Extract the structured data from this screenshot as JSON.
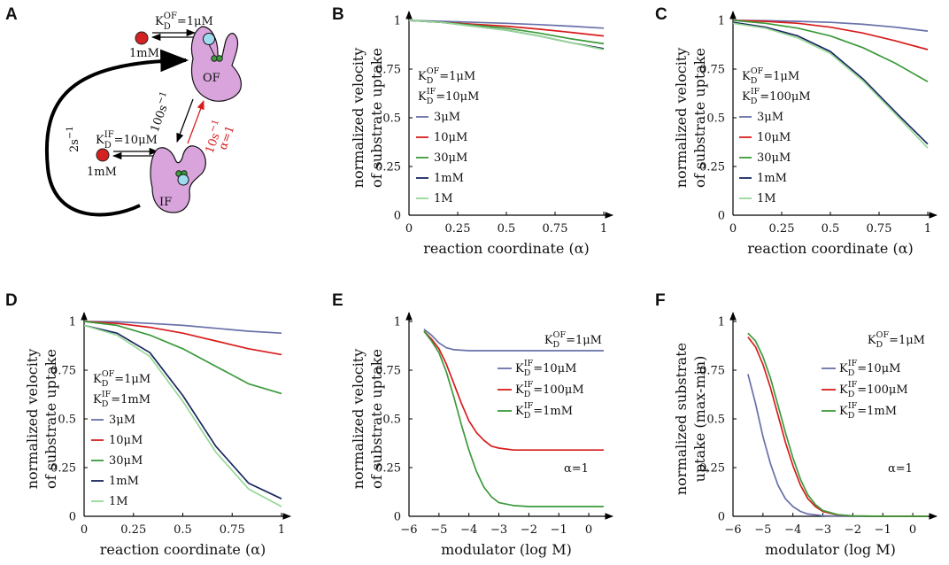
{
  "figure": {
    "panel_letters": [
      "A",
      "B",
      "C",
      "D",
      "E",
      "F"
    ],
    "colors": {
      "blue": "#6870a8",
      "red": "#d81c1c",
      "green": "#3b9a3b",
      "navy": "#1a2560",
      "lightgreen": "#96d896",
      "purple": "#d9a3dc",
      "ion": "#d42222",
      "site": "#9fdcef",
      "axis": "#000000"
    }
  },
  "schematic": {
    "kd_of": {
      "main": "K",
      "sub": "D",
      "sup": "OF",
      "value": "=1μM"
    },
    "kd_if": {
      "main": "K",
      "sub": "D",
      "sup": "IF",
      "value": "=10μM"
    },
    "conc_top": "1mM",
    "conc_bottom": "1mM",
    "state_of": "OF",
    "state_if": "IF",
    "rate_down": "100s",
    "rate_down_exp": "−1",
    "rate_up": "10s",
    "rate_up_exp": "−1",
    "alpha_label": "α=1",
    "rate_return": "2s",
    "rate_return_exp": "−1"
  },
  "chart_data": [
    {
      "panel": "B",
      "type": "line",
      "xlabel": "reaction coordinate (α)",
      "ylabel": [
        "normalized velocity",
        "of substrate uptake"
      ],
      "xlim": [
        0,
        1
      ],
      "ylim": [
        0,
        1
      ],
      "xticks": [
        0,
        0.25,
        0.5,
        0.75,
        1
      ],
      "xtick_labels": [
        "0",
        "0.25",
        "0.5",
        "0.75",
        "1"
      ],
      "yticks": [
        0,
        0.25,
        0.5,
        0.75,
        1
      ],
      "ytick_labels": [
        "0",
        "0.25",
        "0.5",
        "0.75",
        "1"
      ],
      "annotation": [
        {
          "main": "K",
          "sub": "D",
          "sup": "OF",
          "value": "=1μM"
        },
        {
          "main": "K",
          "sub": "D",
          "sup": "IF",
          "value": "=10μM"
        }
      ],
      "series": [
        {
          "name": "3μM",
          "color": "#6870a8",
          "x": [
            0,
            0.167,
            0.333,
            0.5,
            0.667,
            0.833,
            1
          ],
          "y": [
            1,
            0.995,
            0.99,
            0.985,
            0.978,
            0.97,
            0.96
          ]
        },
        {
          "name": "10μM",
          "color": "#d81c1c",
          "x": [
            0,
            0.167,
            0.333,
            0.5,
            0.667,
            0.833,
            1
          ],
          "y": [
            1,
            0.99,
            0.98,
            0.97,
            0.955,
            0.938,
            0.92
          ]
        },
        {
          "name": "30μM",
          "color": "#3b9a3b",
          "x": [
            0,
            0.167,
            0.333,
            0.5,
            0.667,
            0.833,
            1
          ],
          "y": [
            1,
            0.99,
            0.975,
            0.96,
            0.935,
            0.905,
            0.88
          ]
        },
        {
          "name": "1mM",
          "color": "#1a2560",
          "x": [
            0,
            0.167,
            0.333,
            0.5,
            0.667,
            0.833,
            1
          ],
          "y": [
            1,
            0.99,
            0.97,
            0.95,
            0.92,
            0.885,
            0.855
          ]
        },
        {
          "name": "1M",
          "color": "#96d896",
          "x": [
            0,
            0.167,
            0.333,
            0.5,
            0.667,
            0.833,
            1
          ],
          "y": [
            1,
            0.99,
            0.97,
            0.95,
            0.92,
            0.885,
            0.85
          ]
        }
      ]
    },
    {
      "panel": "C",
      "type": "line",
      "xlabel": "reaction coordinate (α)",
      "ylabel": [
        "normalized velocity",
        "of substrate uptake"
      ],
      "xlim": [
        0,
        1
      ],
      "ylim": [
        0,
        1
      ],
      "xticks": [
        0,
        0.25,
        0.5,
        0.75,
        1
      ],
      "xtick_labels": [
        "0",
        "0.25",
        "0.5",
        "0.75",
        "1"
      ],
      "yticks": [
        0,
        0.25,
        0.5,
        0.75,
        1
      ],
      "ytick_labels": [
        "0",
        "0.25",
        "0.5",
        "0.75",
        "1"
      ],
      "annotation": [
        {
          "main": "K",
          "sub": "D",
          "sup": "OF",
          "value": "=1μM"
        },
        {
          "main": "K",
          "sub": "D",
          "sup": "IF",
          "value": "=100μM"
        }
      ],
      "series": [
        {
          "name": "3μM",
          "color": "#6870a8",
          "x": [
            0,
            0.167,
            0.333,
            0.5,
            0.667,
            0.833,
            1
          ],
          "y": [
            1,
            0.998,
            0.995,
            0.99,
            0.98,
            0.965,
            0.945
          ]
        },
        {
          "name": "10μM",
          "color": "#d81c1c",
          "x": [
            0,
            0.167,
            0.333,
            0.5,
            0.667,
            0.833,
            1
          ],
          "y": [
            1,
            0.995,
            0.985,
            0.965,
            0.935,
            0.895,
            0.85
          ]
        },
        {
          "name": "30μM",
          "color": "#3b9a3b",
          "x": [
            0,
            0.167,
            0.333,
            0.5,
            0.667,
            0.833,
            1
          ],
          "y": [
            1,
            0.985,
            0.96,
            0.92,
            0.86,
            0.78,
            0.685
          ]
        },
        {
          "name": "1mM",
          "color": "#1a2560",
          "x": [
            0,
            0.167,
            0.333,
            0.5,
            0.667,
            0.833,
            1
          ],
          "y": [
            0.99,
            0.965,
            0.92,
            0.84,
            0.7,
            0.53,
            0.365
          ]
        },
        {
          "name": "1M",
          "color": "#96d896",
          "x": [
            0,
            0.167,
            0.333,
            0.5,
            0.667,
            0.833,
            1
          ],
          "y": [
            0.985,
            0.96,
            0.91,
            0.83,
            0.69,
            0.52,
            0.345
          ]
        }
      ]
    },
    {
      "panel": "D",
      "type": "line",
      "xlabel": "reaction coordinate (α)",
      "ylabel": [
        "normalized velocity",
        "of substrate uptake"
      ],
      "xlim": [
        0,
        1
      ],
      "ylim": [
        0,
        1
      ],
      "xticks": [
        0,
        0.25,
        0.5,
        0.75,
        1
      ],
      "xtick_labels": [
        "0",
        "0.25",
        "0.5",
        "0.75",
        "1"
      ],
      "yticks": [
        0,
        0.25,
        0.5,
        0.75,
        1
      ],
      "ytick_labels": [
        "0",
        "0.25",
        "0.5",
        "0.75",
        "1"
      ],
      "annotation": [
        {
          "main": "K",
          "sub": "D",
          "sup": "OF",
          "value": "=1μM"
        },
        {
          "main": "K",
          "sub": "D",
          "sup": "IF",
          "value": "=1mM"
        }
      ],
      "series": [
        {
          "name": "3μM",
          "color": "#6870a8",
          "x": [
            0,
            0.167,
            0.333,
            0.5,
            0.667,
            0.833,
            1
          ],
          "y": [
            1,
            0.998,
            0.99,
            0.98,
            0.965,
            0.95,
            0.94
          ]
        },
        {
          "name": "10μM",
          "color": "#d81c1c",
          "x": [
            0,
            0.167,
            0.333,
            0.5,
            0.667,
            0.833,
            1
          ],
          "y": [
            1,
            0.99,
            0.97,
            0.94,
            0.9,
            0.86,
            0.83
          ]
        },
        {
          "name": "30μM",
          "color": "#3b9a3b",
          "x": [
            0,
            0.167,
            0.333,
            0.5,
            0.667,
            0.833,
            1
          ],
          "y": [
            1,
            0.98,
            0.93,
            0.86,
            0.77,
            0.68,
            0.63
          ]
        },
        {
          "name": "1mM",
          "color": "#1a2560",
          "x": [
            0,
            0.167,
            0.333,
            0.5,
            0.667,
            0.833,
            1
          ],
          "y": [
            0.98,
            0.94,
            0.84,
            0.62,
            0.36,
            0.17,
            0.09
          ]
        },
        {
          "name": "1M",
          "color": "#96d896",
          "x": [
            0,
            0.167,
            0.333,
            0.5,
            0.667,
            0.833,
            1
          ],
          "y": [
            0.98,
            0.93,
            0.82,
            0.59,
            0.33,
            0.14,
            0.05
          ]
        }
      ]
    },
    {
      "panel": "E",
      "type": "line",
      "xlabel": "modulator (log M)",
      "ylabel": [
        "normalized velocity",
        "of substrate uptake"
      ],
      "xlim": [
        -6,
        0.5
      ],
      "ylim": [
        0,
        1
      ],
      "xticks": [
        -6,
        -5,
        -4,
        -3,
        -2,
        -1,
        0
      ],
      "xtick_labels": [
        "−6",
        "−5",
        "−4",
        "−3",
        "−2",
        "−1",
        "0"
      ],
      "yticks": [
        0,
        0.25,
        0.5,
        0.75,
        1
      ],
      "ytick_labels": [
        "0",
        "0.25",
        "0.5",
        "0.75",
        "1"
      ],
      "annotation": [
        {
          "main": "K",
          "sub": "D",
          "sup": "OF",
          "value": "=1μM"
        }
      ],
      "note": "α=1",
      "series": [
        {
          "name": "=10μM",
          "label": {
            "main": "K",
            "sub": "D",
            "sup": "IF",
            "value": "=10μM"
          },
          "color": "#6870a8",
          "x": [
            -5.5,
            -5.25,
            -5,
            -4.75,
            -4.5,
            -4,
            -3,
            -2,
            -1,
            0,
            0.5
          ],
          "y": [
            0.96,
            0.93,
            0.89,
            0.865,
            0.855,
            0.85,
            0.85,
            0.85,
            0.85,
            0.85,
            0.85
          ]
        },
        {
          "name": "=100μM",
          "label": {
            "main": "K",
            "sub": "D",
            "sup": "IF",
            "value": "=100μM"
          },
          "color": "#d81c1c",
          "x": [
            -5.5,
            -5.25,
            -5,
            -4.75,
            -4.5,
            -4.25,
            -4,
            -3.75,
            -3.5,
            -3.25,
            -3,
            -2.5,
            -2,
            -1,
            0,
            0.5
          ],
          "y": [
            0.95,
            0.91,
            0.86,
            0.78,
            0.68,
            0.58,
            0.49,
            0.43,
            0.39,
            0.36,
            0.35,
            0.34,
            0.34,
            0.34,
            0.34,
            0.34
          ]
        },
        {
          "name": "=1mM",
          "label": {
            "main": "K",
            "sub": "D",
            "sup": "IF",
            "value": "=1mM"
          },
          "color": "#3b9a3b",
          "x": [
            -5.5,
            -5.25,
            -5,
            -4.75,
            -4.5,
            -4.25,
            -4,
            -3.75,
            -3.5,
            -3.25,
            -3,
            -2.5,
            -2,
            -1,
            0,
            0.5
          ],
          "y": [
            0.95,
            0.9,
            0.84,
            0.74,
            0.61,
            0.47,
            0.34,
            0.23,
            0.15,
            0.1,
            0.07,
            0.055,
            0.05,
            0.05,
            0.05,
            0.05
          ]
        }
      ]
    },
    {
      "panel": "F",
      "type": "line",
      "xlabel": "modulator (log M)",
      "ylabel": [
        "normalized substrate",
        "uptake (max-min)"
      ],
      "xlim": [
        -6,
        0.5
      ],
      "ylim": [
        0,
        1
      ],
      "xticks": [
        -6,
        -5,
        -4,
        -3,
        -2,
        -1,
        0
      ],
      "xtick_labels": [
        "−6",
        "−5",
        "−4",
        "−3",
        "−2",
        "−1",
        "0"
      ],
      "yticks": [
        0,
        0.25,
        0.5,
        0.75,
        1
      ],
      "ytick_labels": [
        "0",
        "0.25",
        "0.5",
        "0.75",
        "1"
      ],
      "annotation": [
        {
          "main": "K",
          "sub": "D",
          "sup": "OF",
          "value": "=1μM"
        }
      ],
      "note": "α=1",
      "series": [
        {
          "name": "=10μM",
          "label": {
            "main": "K",
            "sub": "D",
            "sup": "IF",
            "value": "=10μM"
          },
          "color": "#6870a8",
          "x": [
            -5.5,
            -5.25,
            -5,
            -4.75,
            -4.5,
            -4.25,
            -4,
            -3.75,
            -3.5,
            -3,
            -2.5,
            -2,
            0.5
          ],
          "y": [
            0.73,
            0.58,
            0.41,
            0.27,
            0.16,
            0.09,
            0.05,
            0.025,
            0.012,
            0.003,
            0.001,
            0,
            0
          ]
        },
        {
          "name": "=100μM",
          "label": {
            "main": "K",
            "sub": "D",
            "sup": "IF",
            "value": "=100μM"
          },
          "color": "#d81c1c",
          "x": [
            -5.5,
            -5.25,
            -5,
            -4.75,
            -4.5,
            -4.25,
            -4,
            -3.75,
            -3.5,
            -3.25,
            -3,
            -2.5,
            -2,
            -1,
            0.5
          ],
          "y": [
            0.92,
            0.87,
            0.78,
            0.66,
            0.52,
            0.38,
            0.26,
            0.16,
            0.09,
            0.05,
            0.025,
            0.007,
            0.002,
            0,
            0
          ]
        },
        {
          "name": "=1mM",
          "label": {
            "main": "K",
            "sub": "D",
            "sup": "IF",
            "value": "=1mM"
          },
          "color": "#3b9a3b",
          "x": [
            -5.5,
            -5.25,
            -5,
            -4.75,
            -4.5,
            -4.25,
            -4,
            -3.75,
            -3.5,
            -3.25,
            -3,
            -2.5,
            -2,
            -1,
            0.5
          ],
          "y": [
            0.94,
            0.9,
            0.82,
            0.71,
            0.57,
            0.43,
            0.3,
            0.19,
            0.11,
            0.06,
            0.03,
            0.008,
            0.002,
            0,
            0
          ]
        }
      ]
    }
  ]
}
